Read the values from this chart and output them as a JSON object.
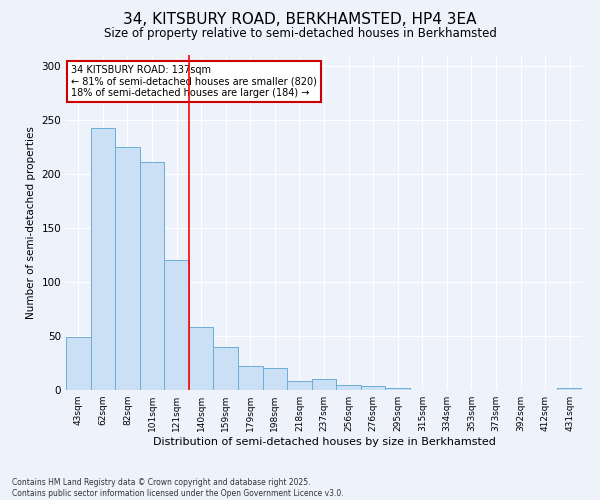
{
  "title": "34, KITSBURY ROAD, BERKHAMSTED, HP4 3EA",
  "subtitle": "Size of property relative to semi-detached houses in Berkhamsted",
  "xlabel": "Distribution of semi-detached houses by size in Berkhamsted",
  "ylabel": "Number of semi-detached properties",
  "categories": [
    "43sqm",
    "62sqm",
    "82sqm",
    "101sqm",
    "121sqm",
    "140sqm",
    "159sqm",
    "179sqm",
    "198sqm",
    "218sqm",
    "237sqm",
    "256sqm",
    "276sqm",
    "295sqm",
    "315sqm",
    "334sqm",
    "353sqm",
    "373sqm",
    "392sqm",
    "412sqm",
    "431sqm"
  ],
  "values": [
    49,
    242,
    225,
    211,
    120,
    58,
    40,
    22,
    20,
    8,
    10,
    5,
    4,
    2,
    0,
    0,
    0,
    0,
    0,
    0,
    2
  ],
  "bar_color": "#cce0f5",
  "bar_edge_color": "#6aaed6",
  "red_line_index": 4.5,
  "annotation_title": "34 KITSBURY ROAD: 137sqm",
  "annotation_line1": "← 81% of semi-detached houses are smaller (820)",
  "annotation_line2": "18% of semi-detached houses are larger (184) →",
  "ylim": [
    0,
    310
  ],
  "yticks": [
    0,
    50,
    100,
    150,
    200,
    250,
    300
  ],
  "footer": "Contains HM Land Registry data © Crown copyright and database right 2025.\nContains public sector information licensed under the Open Government Licence v3.0.",
  "background_color": "#eef2fa",
  "grid_color": "#ffffff",
  "title_fontsize": 11,
  "subtitle_fontsize": 8.5,
  "ylabel_fontsize": 7.5,
  "xlabel_fontsize": 8,
  "tick_fontsize": 6.5,
  "ytick_fontsize": 7.5,
  "annotation_fontsize": 7,
  "annotation_box_color": "#ffffff",
  "annotation_box_edge": "#cc0000",
  "footer_fontsize": 5.5
}
